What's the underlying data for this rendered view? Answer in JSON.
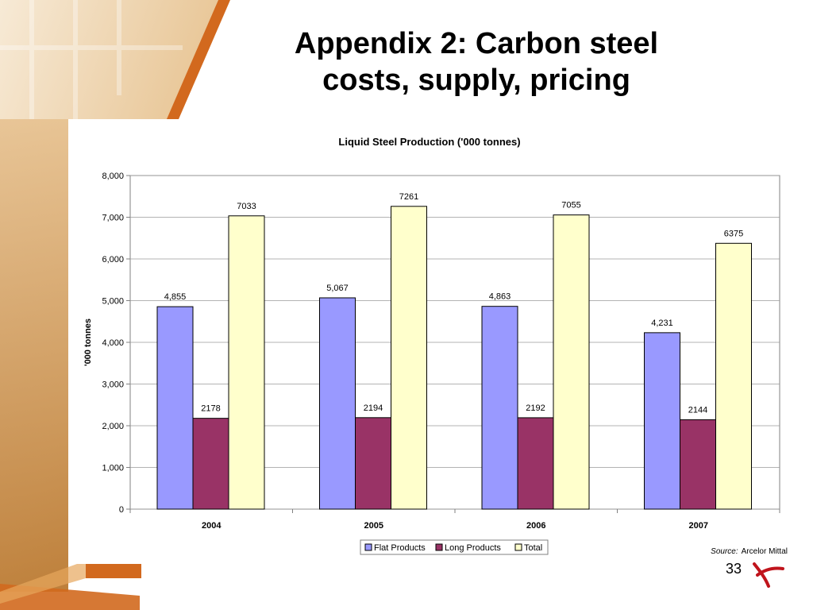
{
  "slide": {
    "title_line1": "Appendix 2: Carbon steel",
    "title_line2": "costs, supply, pricing",
    "source_label": "Source:",
    "source_value": "Arcelor Mittal",
    "page_number": "33"
  },
  "colors": {
    "accent_orange": "#d2691e",
    "flat": "#9999ff",
    "long": "#993366",
    "total": "#ffffcc"
  },
  "chart_data": {
    "type": "bar",
    "title": "Liquid Steel Production ('000 tonnes)",
    "ylabel": "'000 tonnes",
    "xlabel": "",
    "categories": [
      "2004",
      "2005",
      "2006",
      "2007"
    ],
    "series": [
      {
        "name": "Flat Products",
        "values": [
          4855,
          5067,
          4863,
          4231
        ],
        "labels": [
          "4,855",
          "5,067",
          "4,863",
          "4,231"
        ]
      },
      {
        "name": "Long Products",
        "values": [
          2178,
          2194,
          2192,
          2144
        ],
        "labels": [
          "2178",
          "2194",
          "2192",
          "2144"
        ]
      },
      {
        "name": "Total",
        "values": [
          7033,
          7261,
          7055,
          6375
        ],
        "labels": [
          "7033",
          "7261",
          "7055",
          "6375"
        ]
      }
    ],
    "ylim": [
      0,
      8000
    ],
    "yticks": [
      0,
      1000,
      2000,
      3000,
      4000,
      5000,
      6000,
      7000,
      8000
    ],
    "ytick_labels": [
      "0",
      "1,000",
      "2,000",
      "3,000",
      "4,000",
      "5,000",
      "6,000",
      "7,000",
      "8,000"
    ],
    "grid": true,
    "legend_position": "bottom"
  }
}
